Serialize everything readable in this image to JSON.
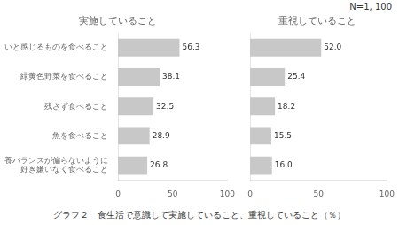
{
  "chart_data": [
    {
      "type": "bar",
      "orientation": "horizontal",
      "title": "実施していること",
      "categories": [
        "おいしいと感じるものを食べること",
        "緑黄色野菜を食べること",
        "残さず食べること",
        "魚を食べること",
        "栄養バランスが偏らないように\n好き嫌いなく食べること"
      ],
      "values": [
        56.3,
        38.1,
        32.5,
        28.9,
        26.8
      ],
      "color": "#c8c8c8",
      "xlim": [
        0,
        100
      ],
      "xticks": [
        0,
        50,
        100
      ],
      "grid": false,
      "data_labels": true,
      "annotations": [
        "グラフ２　食生活で意識して実施していること、重視していること（％）"
      ]
    },
    {
      "type": "bar",
      "orientation": "horizontal",
      "title": "重視していること",
      "categories": [
        "おいしいと感じるものを食べること",
        "緑黄色野菜を食べること",
        "残さず食べること",
        "魚を食べること",
        "栄養バランスが偏らないように\n好き嫌いなく食べること"
      ],
      "values": [
        52.0,
        25.4,
        18.2,
        15.5,
        16.0
      ],
      "value_labels": [
        "52.0",
        "25.4",
        "18.2",
        "15.5",
        "16.0"
      ],
      "color": "#c8c8c8",
      "xlim": [
        0,
        100
      ],
      "xticks": [
        0,
        50,
        100
      ],
      "grid": false,
      "data_labels": true,
      "tick_labels": "x",
      "annotations": [
        "N=1, 100"
      ]
    }
  ]
}
